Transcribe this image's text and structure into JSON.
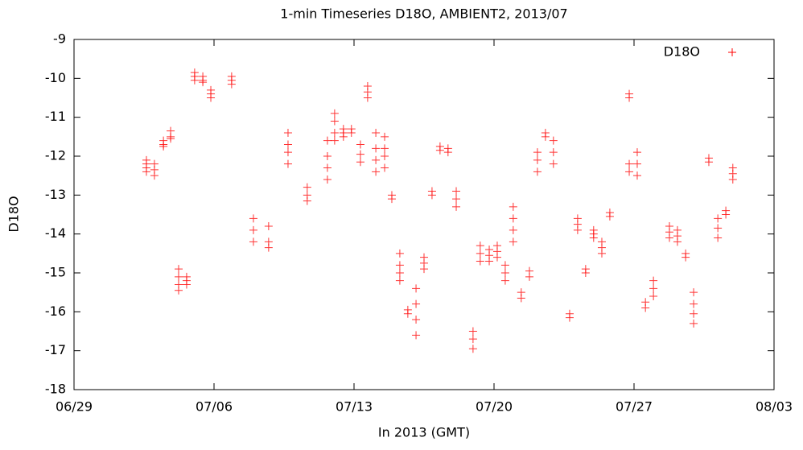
{
  "chart_data": {
    "type": "scatter",
    "title": "1-min Timeseries D18O, AMBIENT2, 2013/07",
    "x_label": "In 2013 (GMT)",
    "y_label": "D18O",
    "xlim": [
      0,
      35
    ],
    "xticks": [
      {
        "value": 0,
        "label": "06/29"
      },
      {
        "value": 7,
        "label": "07/06"
      },
      {
        "value": 14,
        "label": "07/13"
      },
      {
        "value": 21,
        "label": "07/20"
      },
      {
        "value": 28,
        "label": "07/27"
      },
      {
        "value": 35,
        "label": "08/03"
      }
    ],
    "ylim": [
      -18,
      -9
    ],
    "yticks": [
      -18,
      -17,
      -16,
      -15,
      -14,
      -13,
      -12,
      -11,
      -10,
      -9
    ],
    "grid": false,
    "legend": "top-right",
    "series": [
      {
        "name": "D18O",
        "color": "#ff0000",
        "x": [
          3.62,
          3.62,
          3.62,
          3.62,
          4.02,
          4.02,
          4.02,
          4.47,
          4.47,
          4.47,
          4.83,
          4.83,
          4.83,
          5.23,
          5.23,
          5.23,
          5.23,
          5.63,
          5.63,
          5.63,
          6.03,
          6.03,
          6.03,
          6.44,
          6.44,
          6.44,
          6.84,
          6.84,
          6.84,
          7.88,
          7.88,
          7.88,
          8.97,
          8.97,
          8.97,
          9.73,
          9.73,
          9.73,
          10.7,
          10.7,
          10.7,
          10.7,
          11.66,
          11.66,
          11.66,
          12.67,
          12.67,
          12.67,
          12.67,
          13.03,
          13.03,
          13.03,
          13.03,
          13.47,
          13.47,
          13.47,
          13.87,
          13.87,
          14.32,
          14.32,
          14.32,
          14.68,
          14.68,
          14.68,
          15.09,
          15.09,
          15.09,
          15.09,
          15.53,
          15.53,
          15.53,
          15.53,
          15.89,
          15.89,
          16.29,
          16.29,
          16.29,
          16.29,
          16.69,
          16.69,
          17.1,
          17.1,
          17.1,
          17.1,
          17.5,
          17.5,
          17.5,
          17.9,
          17.9,
          18.3,
          18.3,
          18.7,
          18.7,
          19.11,
          19.11,
          19.11,
          19.95,
          19.95,
          19.95,
          20.31,
          20.31,
          20.31,
          20.76,
          20.76,
          20.76,
          21.16,
          21.16,
          21.16,
          21.56,
          21.56,
          21.56,
          21.96,
          21.96,
          21.96,
          21.96,
          22.36,
          22.36,
          22.77,
          22.77,
          23.17,
          23.17,
          23.17,
          23.57,
          23.57,
          23.97,
          23.97,
          23.97,
          24.78,
          24.78,
          25.18,
          25.18,
          25.18,
          25.58,
          25.58,
          25.98,
          25.98,
          25.98,
          26.39,
          26.39,
          26.39,
          26.79,
          26.79,
          27.76,
          27.76,
          27.76,
          27.76,
          28.16,
          28.16,
          28.16,
          28.57,
          28.57,
          28.97,
          28.97,
          28.97,
          29.77,
          29.77,
          29.77,
          30.17,
          30.17,
          30.17,
          30.58,
          30.58,
          30.98,
          30.98,
          30.98,
          30.98,
          31.74,
          31.74,
          32.19,
          32.19,
          32.19,
          32.59,
          32.59,
          32.94,
          32.94,
          32.94
        ],
        "values": [
          -12.1,
          -12.2,
          -12.3,
          -12.4,
          -12.2,
          -12.35,
          -12.5,
          -11.6,
          -11.7,
          -11.75,
          -11.35,
          -11.5,
          -11.55,
          -14.9,
          -15.1,
          -15.3,
          -15.45,
          -15.1,
          -15.2,
          -15.3,
          -9.85,
          -9.95,
          -10.05,
          -9.95,
          -10.05,
          -10.1,
          -10.3,
          -10.4,
          -10.5,
          -9.95,
          -10.05,
          -10.15,
          -13.6,
          -13.9,
          -14.2,
          -13.8,
          -14.2,
          -14.35,
          -11.4,
          -11.7,
          -11.9,
          -12.2,
          -12.8,
          -13.0,
          -13.15,
          -11.6,
          -12.0,
          -12.3,
          -12.6,
          -10.9,
          -11.1,
          -11.4,
          -11.6,
          -11.3,
          -11.4,
          -11.5,
          -11.3,
          -11.4,
          -11.7,
          -11.95,
          -12.15,
          -10.2,
          -10.35,
          -10.5,
          -11.4,
          -11.8,
          -12.1,
          -12.4,
          -11.5,
          -11.8,
          -12.0,
          -12.3,
          -13.0,
          -13.1,
          -14.5,
          -14.8,
          -15.0,
          -15.2,
          -15.95,
          -16.05,
          -15.4,
          -15.8,
          -16.2,
          -16.6,
          -14.6,
          -14.75,
          -14.9,
          -12.9,
          -13.0,
          -11.75,
          -11.85,
          -11.8,
          -11.9,
          -12.9,
          -13.1,
          -13.3,
          -16.5,
          -16.7,
          -16.95,
          -14.3,
          -14.5,
          -14.7,
          -14.4,
          -14.55,
          -14.7,
          -14.3,
          -14.45,
          -14.6,
          -14.8,
          -15.0,
          -15.2,
          -13.3,
          -13.6,
          -13.9,
          -14.2,
          -15.5,
          -15.65,
          -14.95,
          -15.1,
          -11.9,
          -12.1,
          -12.4,
          -11.4,
          -11.5,
          -11.6,
          -11.9,
          -12.2,
          -16.05,
          -16.15,
          -13.6,
          -13.75,
          -13.9,
          -14.9,
          -15.0,
          -13.9,
          -14.0,
          -14.1,
          -14.2,
          -14.35,
          -14.5,
          -13.45,
          -13.55,
          -10.4,
          -10.5,
          -12.2,
          -12.4,
          -11.9,
          -12.2,
          -12.5,
          -15.75,
          -15.9,
          -15.2,
          -15.4,
          -15.6,
          -13.8,
          -13.95,
          -14.1,
          -13.9,
          -14.05,
          -14.2,
          -14.5,
          -14.6,
          -15.5,
          -15.8,
          -16.05,
          -16.3,
          -12.05,
          -12.15,
          -13.6,
          -13.85,
          -14.1,
          -13.4,
          -13.5,
          -12.3,
          -12.45,
          -12.6
        ]
      }
    ]
  }
}
